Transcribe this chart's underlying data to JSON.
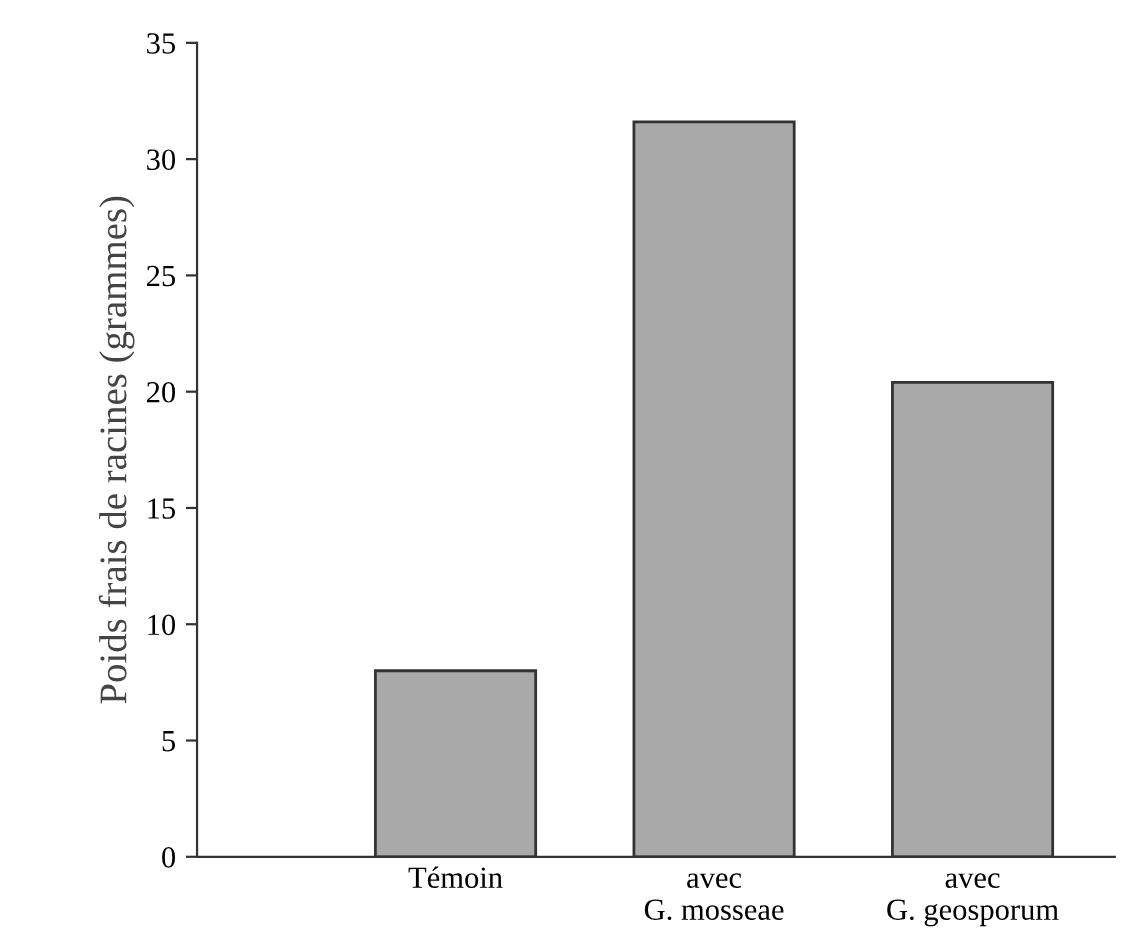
{
  "chart_data": {
    "type": "bar",
    "ylabel": "Poids frais de racines (grammes)",
    "categories": [
      "Témoin",
      "avec\nG. mosseae",
      "avec\nG. geosporum"
    ],
    "values": [
      8,
      31.6,
      20.4
    ],
    "color": "#a9a9a9",
    "ylim": [
      0,
      35
    ],
    "yticks": [
      0,
      5,
      10,
      15,
      20,
      25,
      30,
      35
    ],
    "grid": false
  }
}
